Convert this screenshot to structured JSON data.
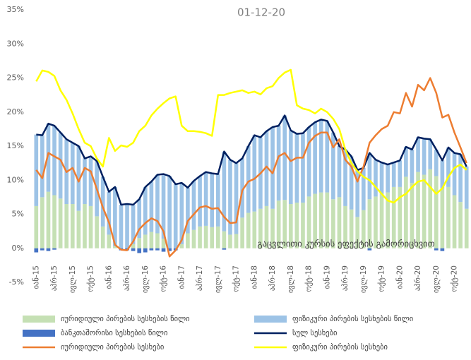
{
  "chart_data": {
    "type": "combo",
    "title": "01-12-20",
    "annotation": "გაცვლითი კურსის ეფექტის გამორიცხვით",
    "categories": [
      "იან-15",
      null,
      null,
      "აპრ-15",
      null,
      null,
      "ივლ-15",
      null,
      null,
      "ოქტ-15",
      null,
      null,
      "იან-16",
      null,
      null,
      "აპრ-16",
      null,
      null,
      "ივლ-16",
      null,
      null,
      "ოქტ-16",
      null,
      null,
      "იან-17",
      null,
      null,
      "აპრ-17",
      null,
      null,
      "ივლ-17",
      null,
      null,
      "ოქტ-17",
      null,
      null,
      "იან-18",
      null,
      null,
      "აპრ-18",
      null,
      null,
      "ივლ-18",
      null,
      null,
      "ოქტ-18",
      null,
      null,
      "იან-19",
      null,
      null,
      "აპრ-19",
      null,
      null,
      "ივლ-19",
      null,
      null,
      "ოქტ-19",
      null,
      null,
      "იან-20",
      null,
      null,
      "აპრ-20",
      null,
      null,
      "ივლ-20",
      null,
      null,
      "ოქტ-20",
      null,
      null
    ],
    "ylim": [
      -5,
      35
    ],
    "yticks": [
      {
        "value": -5,
        "label": "-5%"
      },
      {
        "value": 0,
        "label": "0%"
      },
      {
        "value": 5,
        "label": "5%"
      },
      {
        "value": 10,
        "label": "10%"
      },
      {
        "value": 15,
        "label": "15%"
      },
      {
        "value": 20,
        "label": "20%"
      },
      {
        "value": 25,
        "label": "25%"
      },
      {
        "value": 30,
        "label": "30%"
      },
      {
        "value": 35,
        "label": "35%"
      }
    ],
    "series": [
      {
        "name": "იურიდიული პირების სესხების წილი",
        "type": "bar",
        "color": "#c5e0b4",
        "values": [
          6.2,
          7.5,
          8.3,
          7.8,
          7.3,
          6.5,
          6.5,
          5.5,
          6.5,
          6.2,
          4.7,
          3.2,
          2.0,
          0.3,
          0,
          0,
          0.6,
          1.5,
          2.0,
          2.4,
          2.2,
          1.4,
          0,
          0,
          0.6,
          2.2,
          2.7,
          3.2,
          3.3,
          3.1,
          3.2,
          2.5,
          2.0,
          2.1,
          4.5,
          5.2,
          5.4,
          5.8,
          6.2,
          5.8,
          7.0,
          7.1,
          6.5,
          6.7,
          6.7,
          7.6,
          8.0,
          8.2,
          8.2,
          7.2,
          7.5,
          6.2,
          5.7,
          4.6,
          5.6,
          7.2,
          7.6,
          8.0,
          8.2,
          9.0,
          9.0,
          10.5,
          9.6,
          11.2,
          10.8,
          11.6,
          10.6,
          8.8,
          9.0,
          7.8,
          6.8,
          5.8
        ]
      },
      {
        "name": "ფიზიკური პირების სესხების წილი",
        "type": "bar",
        "color": "#9dc3e6",
        "values": [
          10.5,
          9.1,
          10.0,
          10.2,
          9.7,
          9.5,
          9.0,
          9.5,
          6.7,
          7.3,
          8.1,
          7.3,
          6.3,
          8.7,
          6.4,
          6.5,
          5.8,
          5.7,
          7.0,
          7.4,
          8.6,
          9.5,
          10.6,
          9.4,
          9.0,
          6.7,
          7.2,
          7.4,
          7.9,
          7.9,
          7.7,
          11.7,
          11.0,
          10.4,
          8.7,
          9.8,
          11.2,
          10.5,
          11.0,
          12.0,
          11.0,
          12.4,
          10.8,
          10.1,
          10.2,
          10.2,
          10.5,
          10.7,
          10.5,
          9.8,
          7.5,
          8.3,
          7.8,
          6.9,
          6.2,
          6.8,
          5.4,
          4.6,
          4.1,
          3.6,
          3.9,
          4.4,
          4.9,
          5.1,
          5.3,
          4.4,
          3.9,
          4.1,
          5.8,
          6.2,
          7.0,
          6.2
        ]
      },
      {
        "name": "ბანკთაშორისი სესხების წილი",
        "type": "bar",
        "color": "#4472c4",
        "values": [
          -0.6,
          -0.3,
          -0.4,
          -0.2,
          0,
          0,
          0,
          0,
          0,
          0,
          0,
          0,
          0,
          0,
          -0.3,
          -0.3,
          -0.4,
          -0.7,
          -0.6,
          -0.3,
          -0.3,
          -0.5,
          -0.4,
          -0.3,
          0,
          0,
          0,
          0,
          0,
          0,
          0,
          -0.2,
          0,
          0,
          0,
          0,
          0,
          0,
          0,
          0,
          0,
          0,
          0,
          0,
          0,
          0,
          0,
          0,
          0,
          0,
          0,
          0,
          0,
          0,
          0,
          -0.3,
          0,
          0,
          0,
          0,
          0,
          0,
          0,
          0,
          0,
          0,
          -0.3,
          -0.4,
          0,
          0,
          0,
          0
        ]
      },
      {
        "name": "სულ სესხები",
        "type": "line",
        "color": "#002060",
        "values": [
          16.7,
          16.6,
          18.3,
          18.0,
          17.0,
          16.0,
          15.5,
          15.0,
          13.2,
          13.5,
          12.8,
          10.5,
          8.3,
          9.0,
          6.4,
          6.5,
          6.4,
          7.2,
          9.0,
          9.8,
          10.8,
          10.9,
          10.6,
          9.4,
          9.6,
          8.9,
          9.9,
          10.6,
          11.2,
          11.0,
          10.9,
          14.2,
          13.0,
          12.5,
          13.2,
          15.0,
          16.6,
          16.3,
          17.2,
          17.8,
          18.0,
          19.5,
          17.3,
          16.8,
          16.9,
          17.8,
          18.5,
          18.9,
          18.7,
          17.0,
          15.0,
          14.5,
          13.5,
          11.5,
          11.8,
          14.0,
          13.0,
          12.6,
          12.3,
          12.6,
          12.9,
          14.9,
          14.5,
          16.3,
          16.1,
          16.0,
          14.5,
          12.9,
          14.8,
          14.0,
          13.8,
          12.0
        ]
      },
      {
        "name": "იურიდიული პირების სესხები",
        "type": "line",
        "color": "#ed7d31",
        "values": [
          11.5,
          10.3,
          14.0,
          13.5,
          13.0,
          11.2,
          11.8,
          9.8,
          11.8,
          11.3,
          8.7,
          6.0,
          3.8,
          0.5,
          -0.2,
          -0.3,
          1.0,
          2.8,
          3.7,
          4.4,
          4.0,
          2.5,
          -1.2,
          -0.3,
          1.2,
          4.0,
          5.0,
          6.0,
          6.2,
          5.8,
          5.9,
          4.6,
          3.7,
          3.8,
          8.5,
          9.8,
          10.2,
          11.0,
          12.0,
          11.0,
          13.5,
          14.0,
          12.8,
          13.3,
          13.3,
          15.5,
          16.5,
          17.0,
          17.0,
          14.8,
          16.0,
          13.0,
          12.0,
          9.8,
          12.0,
          15.5,
          16.6,
          17.5,
          18.0,
          20.0,
          19.8,
          22.8,
          20.8,
          24.0,
          23.2,
          25.0,
          22.8,
          19.2,
          19.6,
          17.0,
          14.8,
          12.5
        ]
      },
      {
        "name": "ფიზიკური პირების სესხები",
        "type": "line",
        "color": "#ffff00",
        "values": [
          24.5,
          26.1,
          25.9,
          25.3,
          23.2,
          21.8,
          19.8,
          17.5,
          15.5,
          15.0,
          13.2,
          12.0,
          16.2,
          14.3,
          15.1,
          14.9,
          15.5,
          17.2,
          18.0,
          19.5,
          20.5,
          21.3,
          22.0,
          22.3,
          18.0,
          17.2,
          17.2,
          17.1,
          16.9,
          16.5,
          22.5,
          22.5,
          22.8,
          23.0,
          23.2,
          22.8,
          23.0,
          22.6,
          23.5,
          23.8,
          25.0,
          25.8,
          26.2,
          21.0,
          20.5,
          20.3,
          19.8,
          20.5,
          20.0,
          19.0,
          17.5,
          14.5,
          12.5,
          11.3,
          10.5,
          10.0,
          9.0,
          8.0,
          7.0,
          6.7,
          7.5,
          8.0,
          9.0,
          9.8,
          10.0,
          9.0,
          8.0,
          8.8,
          10.5,
          11.8,
          12.3,
          11.5
        ]
      }
    ]
  }
}
